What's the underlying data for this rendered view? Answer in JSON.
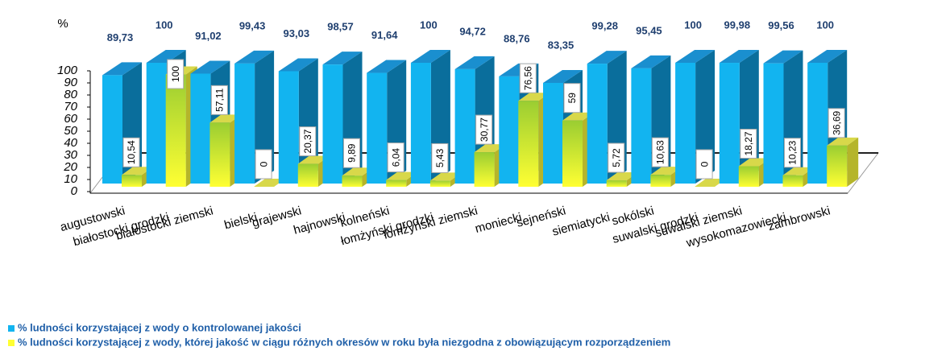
{
  "chart_data": {
    "type": "bar3d",
    "y_axis_label": "%",
    "categories": [
      "augustowski",
      "białostocki grodzki",
      "białostocki ziemski",
      "bielski",
      "grajewski",
      "hajnowski",
      "kolneński",
      "łomżyński grodzki",
      "łomżyński ziemski",
      "moniecki",
      "sejneński",
      "siemiatycki",
      "sokólski",
      "suwalski grodzki",
      "suwalski ziemski",
      "wysokomazowiecki",
      "zambrowski"
    ],
    "series": [
      {
        "name": "% ludności korzystającej z wody o kontrolowanej jakości",
        "color": "#12b4f0",
        "values": [
          89.73,
          100,
          91.02,
          99.43,
          93.03,
          98.57,
          91.64,
          100,
          94.72,
          88.76,
          83.35,
          99.28,
          95.45,
          100,
          99.98,
          99.56,
          100
        ],
        "value_labels": [
          "89,73",
          "100",
          "91,02",
          "99,43",
          "93,03",
          "98,57",
          "91,64",
          "100",
          "94,72",
          "88,76",
          "83,35",
          "99,28",
          "95,45",
          "100",
          "99,98",
          "99,56",
          "100"
        ]
      },
      {
        "name": "% ludności korzystającej z wody, której jakość w ciągu różnych okresów w roku była niezgodna z obowiązującym rozporządzeniem",
        "color": "#ffff33",
        "values": [
          10.54,
          100,
          57.11,
          0,
          20.37,
          9.89,
          6.04,
          5.43,
          30.77,
          76.56,
          59,
          5.72,
          10.63,
          0,
          18.27,
          10.23,
          36.69
        ],
        "value_labels": [
          "10,54",
          "100",
          "57,11",
          "0",
          "20,37",
          "9,89",
          "6,04",
          "5,43",
          "30,77",
          "76,56",
          "59",
          "5,72",
          "10,63",
          "0",
          "18,27",
          "10,23",
          "36,69"
        ]
      }
    ],
    "ylim": [
      0,
      100
    ],
    "yticks": [
      0,
      10,
      20,
      30,
      40,
      50,
      60,
      70,
      80,
      90,
      100
    ]
  }
}
